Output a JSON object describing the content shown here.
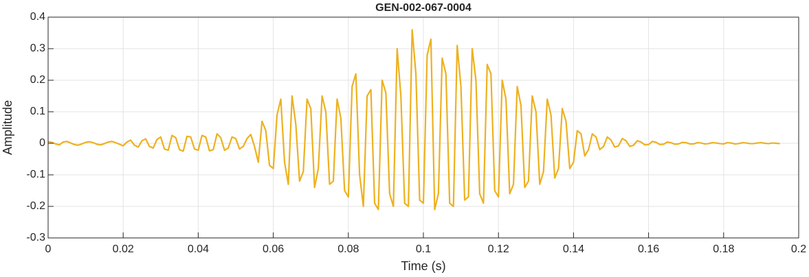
{
  "chart_data": {
    "type": "line",
    "title": "GEN-002-067-0004",
    "x_label": "Time (s)",
    "y_label": "Amplitude",
    "color": "#EDB120",
    "grid": true,
    "xlim": [
      0,
      0.2
    ],
    "xticks": [
      0,
      0.02,
      0.04,
      0.06,
      0.08,
      0.1,
      0.12,
      0.14,
      0.16,
      0.18,
      0.2
    ],
    "ylim": [
      -0.3,
      0.4
    ],
    "yticks": [
      -0.3,
      -0.2,
      -0.1,
      0,
      0.1,
      0.2,
      0.3,
      0.4
    ],
    "x": [
      0.0,
      0.001,
      0.002,
      0.003,
      0.004,
      0.005,
      0.006,
      0.007,
      0.008,
      0.009,
      0.01,
      0.011,
      0.012,
      0.013,
      0.014,
      0.015,
      0.016,
      0.017,
      0.018,
      0.019,
      0.02,
      0.021,
      0.022,
      0.023,
      0.024,
      0.025,
      0.026,
      0.027,
      0.028,
      0.029,
      0.03,
      0.031,
      0.032,
      0.033,
      0.034,
      0.035,
      0.036,
      0.037,
      0.038,
      0.039,
      0.04,
      0.041,
      0.042,
      0.043,
      0.044,
      0.045,
      0.046,
      0.047,
      0.048,
      0.049,
      0.05,
      0.051,
      0.052,
      0.053,
      0.054,
      0.055,
      0.056,
      0.057,
      0.058,
      0.059,
      0.06,
      0.061,
      0.062,
      0.063,
      0.064,
      0.065,
      0.066,
      0.067,
      0.068,
      0.069,
      0.07,
      0.071,
      0.072,
      0.073,
      0.074,
      0.075,
      0.076,
      0.077,
      0.078,
      0.079,
      0.08,
      0.081,
      0.082,
      0.083,
      0.084,
      0.085,
      0.086,
      0.087,
      0.088,
      0.089,
      0.09,
      0.091,
      0.092,
      0.093,
      0.094,
      0.095,
      0.096,
      0.097,
      0.098,
      0.099,
      0.1,
      0.101,
      0.102,
      0.103,
      0.104,
      0.105,
      0.106,
      0.107,
      0.108,
      0.109,
      0.11,
      0.111,
      0.112,
      0.113,
      0.114,
      0.115,
      0.116,
      0.117,
      0.118,
      0.119,
      0.12,
      0.121,
      0.122,
      0.123,
      0.124,
      0.125,
      0.126,
      0.127,
      0.128,
      0.129,
      0.13,
      0.131,
      0.132,
      0.133,
      0.134,
      0.135,
      0.136,
      0.137,
      0.138,
      0.139,
      0.14,
      0.141,
      0.142,
      0.143,
      0.144,
      0.145,
      0.146,
      0.147,
      0.148,
      0.149,
      0.15,
      0.151,
      0.152,
      0.153,
      0.154,
      0.155,
      0.156,
      0.157,
      0.158,
      0.159,
      0.16,
      0.161,
      0.162,
      0.163,
      0.164,
      0.165,
      0.166,
      0.167,
      0.168,
      0.169,
      0.17,
      0.171,
      0.172,
      0.173,
      0.174,
      0.175,
      0.176,
      0.177,
      0.178,
      0.179,
      0.18,
      0.181,
      0.182,
      0.183,
      0.184,
      0.185,
      0.186,
      0.187,
      0.188,
      0.189,
      0.19,
      0.191,
      0.192,
      0.193,
      0.194,
      0.195
    ],
    "values": [
      0.005,
      0.003,
      -0.002,
      -0.005,
      0.004,
      0.006,
      0.001,
      -0.004,
      -0.006,
      -0.002,
      0.003,
      0.005,
      0.002,
      -0.003,
      -0.005,
      -0.001,
      0.004,
      0.006,
      0.002,
      -0.003,
      -0.008,
      0.004,
      0.01,
      -0.006,
      -0.012,
      0.008,
      0.014,
      -0.01,
      -0.015,
      0.012,
      0.02,
      -0.018,
      -0.022,
      0.025,
      0.018,
      -0.02,
      -0.025,
      0.022,
      0.02,
      -0.018,
      -0.022,
      0.025,
      0.02,
      -0.024,
      -0.02,
      0.03,
      0.018,
      -0.022,
      -0.015,
      0.02,
      0.015,
      -0.018,
      -0.01,
      0.015,
      0.028,
      -0.01,
      -0.06,
      0.07,
      0.04,
      -0.07,
      -0.08,
      0.09,
      0.14,
      -0.06,
      -0.13,
      0.15,
      0.06,
      -0.12,
      -0.09,
      0.14,
      0.11,
      -0.14,
      -0.08,
      0.15,
      0.1,
      -0.13,
      -0.12,
      0.14,
      0.08,
      -0.15,
      -0.17,
      0.18,
      0.22,
      -0.1,
      -0.2,
      0.15,
      0.17,
      -0.19,
      -0.21,
      0.2,
      0.16,
      -0.16,
      -0.2,
      0.3,
      0.15,
      -0.19,
      -0.2,
      0.36,
      0.22,
      -0.18,
      -0.19,
      0.28,
      0.33,
      -0.21,
      -0.16,
      0.27,
      0.22,
      -0.19,
      -0.2,
      0.31,
      0.18,
      -0.18,
      -0.17,
      0.3,
      0.2,
      -0.16,
      -0.19,
      0.25,
      0.22,
      -0.15,
      -0.17,
      0.2,
      0.14,
      -0.16,
      -0.13,
      0.18,
      0.12,
      -0.14,
      -0.12,
      0.15,
      0.1,
      -0.13,
      -0.09,
      0.14,
      0.09,
      -0.11,
      -0.08,
      0.11,
      0.07,
      -0.08,
      -0.06,
      0.04,
      0.03,
      -0.04,
      -0.02,
      0.03,
      0.02,
      -0.02,
      -0.01,
      0.02,
      0.01,
      -0.012,
      -0.008,
      0.015,
      0.008,
      -0.01,
      -0.006,
      0.008,
      0.004,
      -0.005,
      -0.004,
      0.006,
      0.003,
      -0.004,
      -0.003,
      0.004,
      0.002,
      -0.003,
      -0.002,
      0.003,
      0.002,
      -0.002,
      -0.002,
      0.002,
      0.001,
      -0.002,
      -0.001,
      0.002,
      0.001,
      -0.001,
      -0.002,
      0.002,
      0.001,
      -0.002,
      -0.001,
      0.002,
      0.001,
      -0.001,
      -0.001,
      0.001,
      0.002,
      0.0,
      -0.001,
      0.001,
      0.0,
      -0.001
    ]
  }
}
